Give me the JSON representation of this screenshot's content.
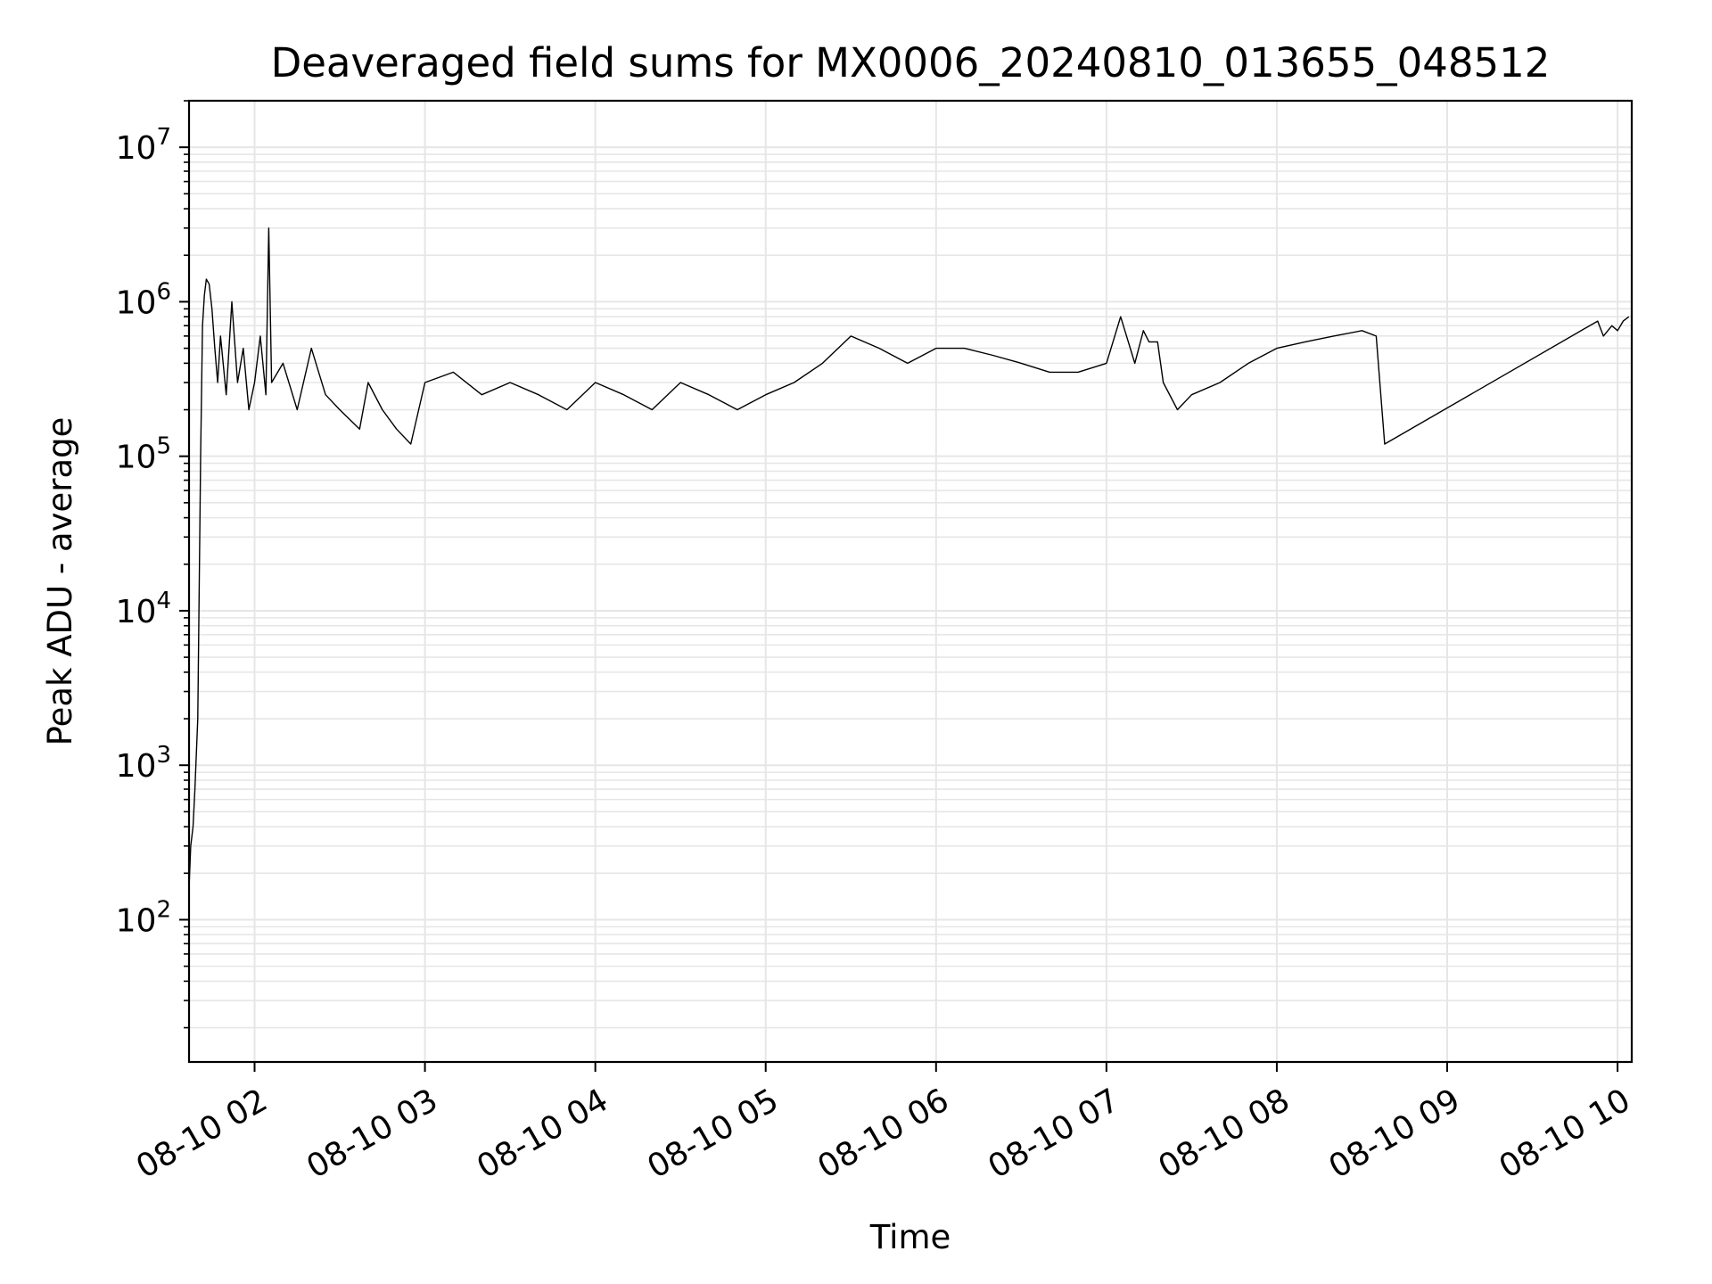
{
  "chart_data": {
    "type": "line",
    "title": "Deaveraged field sums for MX0006_20240810_013655_048512",
    "xlabel": "Time",
    "ylabel": "Peak ADU - average",
    "yscale": "log",
    "ylim": [
      12,
      20000000
    ],
    "xlim": [
      "2024-08-10 01:36:55",
      "2024-08-10 10:05:00"
    ],
    "grid": true,
    "line_color": "#000000",
    "grid_color": "#e6e6e6",
    "x_ticks": [
      {
        "value": "2024-08-10 02:00",
        "label": "08-10 02"
      },
      {
        "value": "2024-08-10 03:00",
        "label": "08-10 03"
      },
      {
        "value": "2024-08-10 04:00",
        "label": "08-10 04"
      },
      {
        "value": "2024-08-10 05:00",
        "label": "08-10 05"
      },
      {
        "value": "2024-08-10 06:00",
        "label": "08-10 06"
      },
      {
        "value": "2024-08-10 07:00",
        "label": "08-10 07"
      },
      {
        "value": "2024-08-10 08:00",
        "label": "08-10 08"
      },
      {
        "value": "2024-08-10 09:00",
        "label": "08-10 09"
      },
      {
        "value": "2024-08-10 10:00",
        "label": "08-10 10"
      }
    ],
    "y_ticks": [
      {
        "value": 100,
        "base": "10",
        "exp": "2"
      },
      {
        "value": 1000,
        "base": "10",
        "exp": "3"
      },
      {
        "value": 10000,
        "base": "10",
        "exp": "4"
      },
      {
        "value": 100000,
        "base": "10",
        "exp": "5"
      },
      {
        "value": 1000000,
        "base": "10",
        "exp": "6"
      },
      {
        "value": 10000000,
        "base": "10",
        "exp": "7"
      }
    ],
    "series": [
      {
        "x": [
          "2024-08-10 01:36:55",
          "2024-08-10 01:37:30",
          "2024-08-10 01:38:20",
          "2024-08-10 01:39:00",
          "2024-08-10 01:40:00",
          "2024-08-10 01:41:00",
          "2024-08-10 01:41:40",
          "2024-08-10 01:42:20",
          "2024-08-10 01:43:00",
          "2024-08-10 01:44:00",
          "2024-08-10 01:45:00",
          "2024-08-10 01:46:00",
          "2024-08-10 01:47:00",
          "2024-08-10 01:48:00",
          "2024-08-10 01:50:00",
          "2024-08-10 01:52:00",
          "2024-08-10 01:54:00",
          "2024-08-10 01:56:00",
          "2024-08-10 01:58:00",
          "2024-08-10 02:00:00",
          "2024-08-10 02:02:00",
          "2024-08-10 02:04:00",
          "2024-08-10 02:05:00",
          "2024-08-10 02:06:00",
          "2024-08-10 02:10:00",
          "2024-08-10 02:15:00",
          "2024-08-10 02:20:00",
          "2024-08-10 02:25:00",
          "2024-08-10 02:30:00",
          "2024-08-10 02:37:00",
          "2024-08-10 02:40:00",
          "2024-08-10 02:45:00",
          "2024-08-10 02:50:00",
          "2024-08-10 02:55:00",
          "2024-08-10 03:00:00",
          "2024-08-10 03:10:00",
          "2024-08-10 03:20:00",
          "2024-08-10 03:30:00",
          "2024-08-10 03:40:00",
          "2024-08-10 03:50:00",
          "2024-08-10 04:00:00",
          "2024-08-10 04:10:00",
          "2024-08-10 04:20:00",
          "2024-08-10 04:30:00",
          "2024-08-10 04:40:00",
          "2024-08-10 04:50:00",
          "2024-08-10 05:00:00",
          "2024-08-10 05:10:00",
          "2024-08-10 05:20:00",
          "2024-08-10 05:30:00",
          "2024-08-10 05:40:00",
          "2024-08-10 05:50:00",
          "2024-08-10 06:00:00",
          "2024-08-10 06:10:00",
          "2024-08-10 06:20:00",
          "2024-08-10 06:30:00",
          "2024-08-10 06:40:00",
          "2024-08-10 06:50:00",
          "2024-08-10 07:00:00",
          "2024-08-10 07:05:00",
          "2024-08-10 07:10:00",
          "2024-08-10 07:13:00",
          "2024-08-10 07:15:00",
          "2024-08-10 07:18:00",
          "2024-08-10 07:20:00",
          "2024-08-10 07:25:00",
          "2024-08-10 07:30:00",
          "2024-08-10 07:40:00",
          "2024-08-10 07:50:00",
          "2024-08-10 08:00:00",
          "2024-08-10 08:10:00",
          "2024-08-10 08:20:00",
          "2024-08-10 08:30:00",
          "2024-08-10 08:35:00",
          "2024-08-10 08:38:00",
          "2024-08-10 09:53:00",
          "2024-08-10 09:55:00",
          "2024-08-10 09:58:00",
          "2024-08-10 10:00:00",
          "2024-08-10 10:02:00",
          "2024-08-10 10:04:00"
        ],
        "values": [
          160,
          300,
          400,
          700,
          2000,
          100000,
          700000,
          1100000,
          1400000,
          1300000,
          900000,
          500000,
          300000,
          600000,
          250000,
          1000000,
          300000,
          500000,
          200000,
          300000,
          600000,
          250000,
          3000000,
          300000,
          400000,
          200000,
          500000,
          250000,
          200000,
          150000,
          300000,
          200000,
          150000,
          120000,
          300000,
          350000,
          250000,
          300000,
          250000,
          200000,
          300000,
          250000,
          200000,
          300000,
          250000,
          200000,
          250000,
          300000,
          400000,
          600000,
          500000,
          400000,
          500000,
          500000,
          450000,
          400000,
          350000,
          350000,
          400000,
          800000,
          400000,
          650000,
          550000,
          550000,
          300000,
          200000,
          250000,
          300000,
          400000,
          500000,
          550000,
          600000,
          650000,
          600000,
          120000,
          750000,
          600000,
          700000,
          650000,
          750000,
          800000
        ]
      }
    ]
  }
}
